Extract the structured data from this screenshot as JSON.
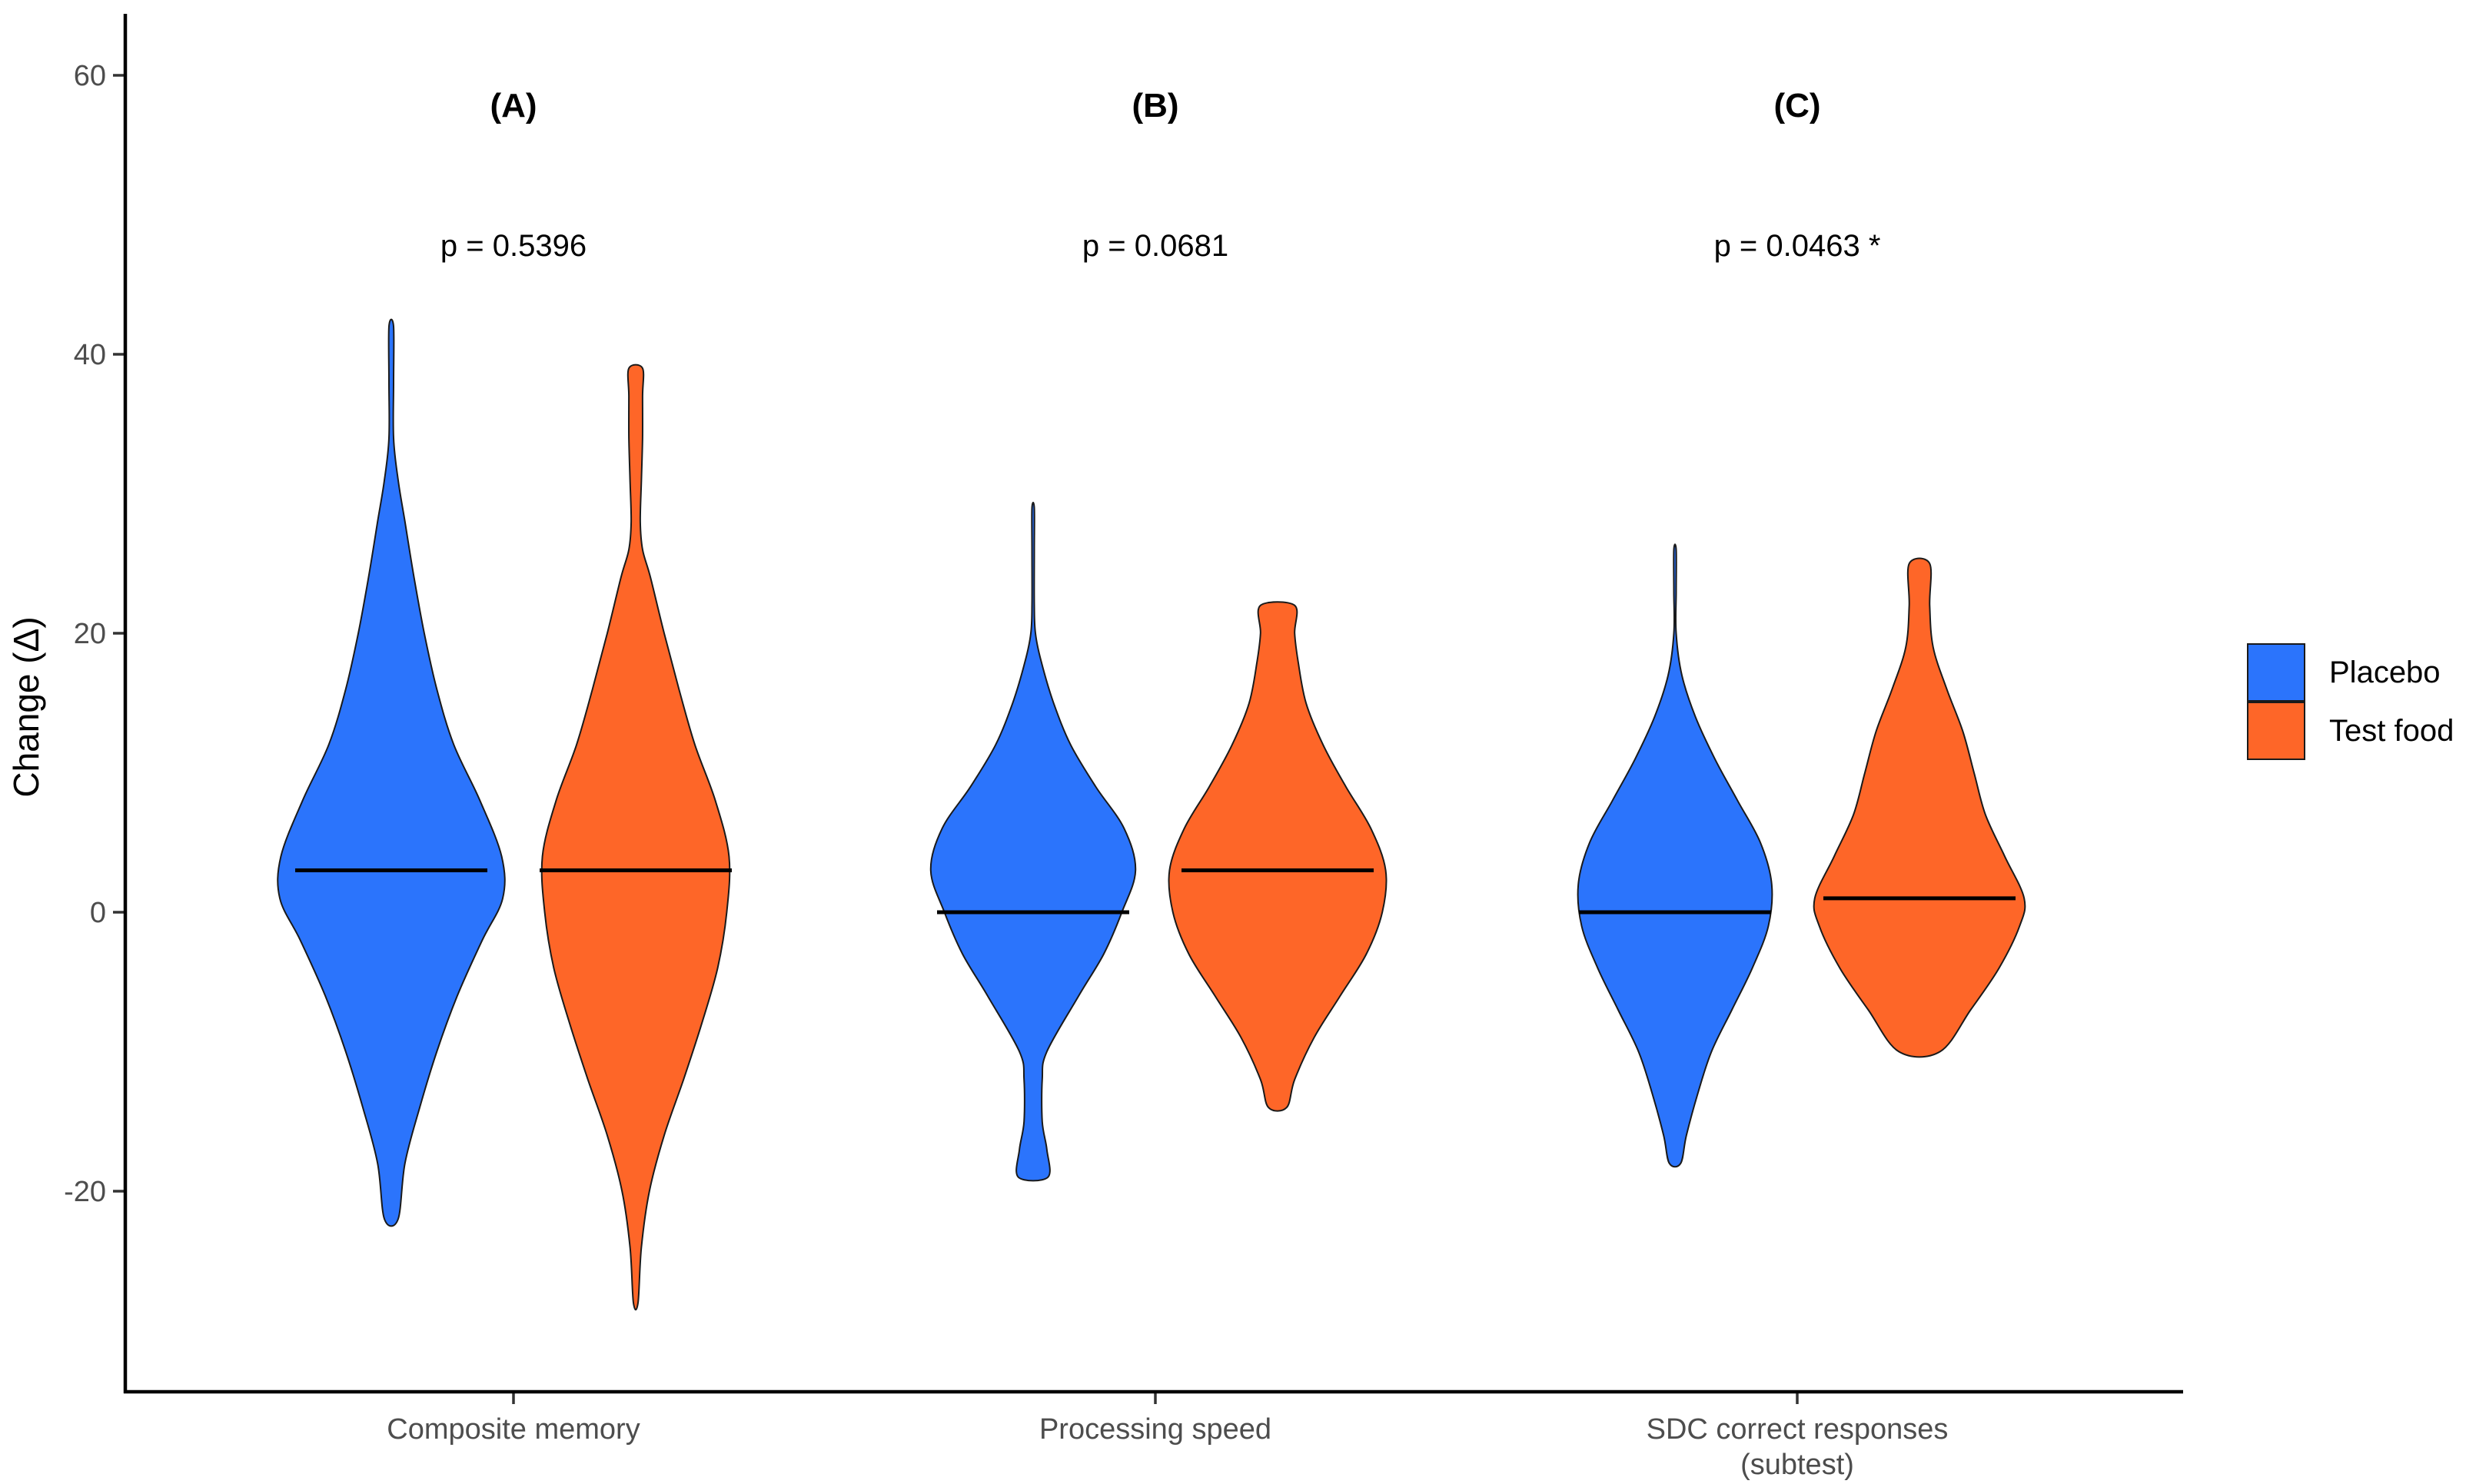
{
  "chart_data": {
    "type": "violin",
    "ylabel": "Change (Δ)",
    "ylim": [
      -35,
      65
    ],
    "yticks": [
      -20,
      0,
      20,
      40,
      60
    ],
    "categories": [
      {
        "label": "Composite memory",
        "panel": "(A)",
        "pvalue": "p = 0.5396"
      },
      {
        "label": "Processing speed",
        "panel": "(B)",
        "pvalue": "p = 0.0681"
      },
      {
        "label": "SDC correct responses\n(subtest)",
        "panel": "(C)",
        "pvalue": "p = 0.0463 *"
      }
    ],
    "series": [
      {
        "name": "Placebo",
        "color": "#2b74fc",
        "groups": [
          {
            "median": 3,
            "min": -22,
            "max": 42,
            "profile": [
              [
                -22,
                0.06
              ],
              [
                -18,
                0.12
              ],
              [
                -14,
                0.25
              ],
              [
                -10,
                0.4
              ],
              [
                -6,
                0.58
              ],
              [
                -2,
                0.8
              ],
              [
                1,
                0.98
              ],
              [
                4,
                0.97
              ],
              [
                8,
                0.78
              ],
              [
                12,
                0.55
              ],
              [
                16,
                0.4
              ],
              [
                20,
                0.29
              ],
              [
                24,
                0.2
              ],
              [
                28,
                0.12
              ],
              [
                31,
                0.06
              ],
              [
                34,
                0.02
              ],
              [
                38,
                0.02
              ],
              [
                42,
                0.02
              ]
            ]
          },
          {
            "median": 0,
            "min": -19,
            "max": 29,
            "profile": [
              [
                -19,
                0.13
              ],
              [
                -17,
                0.12
              ],
              [
                -15,
                0.08
              ],
              [
                -12,
                0.08
              ],
              [
                -10,
                0.12
              ],
              [
                -6,
                0.4
              ],
              [
                -3,
                0.62
              ],
              [
                0,
                0.78
              ],
              [
                3,
                0.9
              ],
              [
                6,
                0.8
              ],
              [
                9,
                0.55
              ],
              [
                12,
                0.33
              ],
              [
                15,
                0.18
              ],
              [
                18,
                0.07
              ],
              [
                20,
                0.02
              ],
              [
                22,
                0.01
              ],
              [
                26,
                0.01
              ],
              [
                29,
                0.01
              ]
            ]
          },
          {
            "median": 0,
            "min": -18,
            "max": 26,
            "profile": [
              [
                -18,
                0.05
              ],
              [
                -16,
                0.1
              ],
              [
                -13,
                0.2
              ],
              [
                -10,
                0.32
              ],
              [
                -7,
                0.5
              ],
              [
                -4,
                0.68
              ],
              [
                -1,
                0.82
              ],
              [
                2,
                0.85
              ],
              [
                5,
                0.75
              ],
              [
                8,
                0.55
              ],
              [
                11,
                0.35
              ],
              [
                14,
                0.18
              ],
              [
                17,
                0.06
              ],
              [
                20,
                0.01
              ],
              [
                23,
                0.01
              ],
              [
                26,
                0.01
              ]
            ]
          }
        ]
      },
      {
        "name": "Test food",
        "color": "#fe6628",
        "groups": [
          {
            "median": 3,
            "min": -28,
            "max": 39,
            "profile": [
              [
                -28,
                0.02
              ],
              [
                -24,
                0.05
              ],
              [
                -20,
                0.12
              ],
              [
                -16,
                0.25
              ],
              [
                -12,
                0.42
              ],
              [
                -8,
                0.58
              ],
              [
                -4,
                0.72
              ],
              [
                0,
                0.8
              ],
              [
                4,
                0.82
              ],
              [
                8,
                0.7
              ],
              [
                12,
                0.52
              ],
              [
                16,
                0.38
              ],
              [
                20,
                0.25
              ],
              [
                24,
                0.13
              ],
              [
                26,
                0.06
              ],
              [
                28,
                0.04
              ],
              [
                31,
                0.05
              ],
              [
                34,
                0.06
              ],
              [
                37,
                0.06
              ],
              [
                39,
                0.06
              ]
            ]
          },
          {
            "median": 3,
            "min": -14,
            "max": 22,
            "profile": [
              [
                -14,
                0.08
              ],
              [
                -12,
                0.15
              ],
              [
                -9,
                0.32
              ],
              [
                -6,
                0.55
              ],
              [
                -3,
                0.78
              ],
              [
                0,
                0.92
              ],
              [
                3,
                0.95
              ],
              [
                6,
                0.82
              ],
              [
                9,
                0.6
              ],
              [
                12,
                0.4
              ],
              [
                15,
                0.25
              ],
              [
                18,
                0.18
              ],
              [
                20,
                0.15
              ],
              [
                22,
                0.15
              ]
            ]
          },
          {
            "median": 1,
            "min": -10,
            "max": 25,
            "profile": [
              [
                -10,
                0.18
              ],
              [
                -7,
                0.45
              ],
              [
                -4,
                0.7
              ],
              [
                -1,
                0.88
              ],
              [
                1,
                0.92
              ],
              [
                4,
                0.75
              ],
              [
                7,
                0.58
              ],
              [
                10,
                0.48
              ],
              [
                13,
                0.38
              ],
              [
                16,
                0.24
              ],
              [
                19,
                0.12
              ],
              [
                22,
                0.09
              ],
              [
                25,
                0.09
              ]
            ]
          }
        ]
      }
    ],
    "legend": {
      "position": "right"
    }
  }
}
